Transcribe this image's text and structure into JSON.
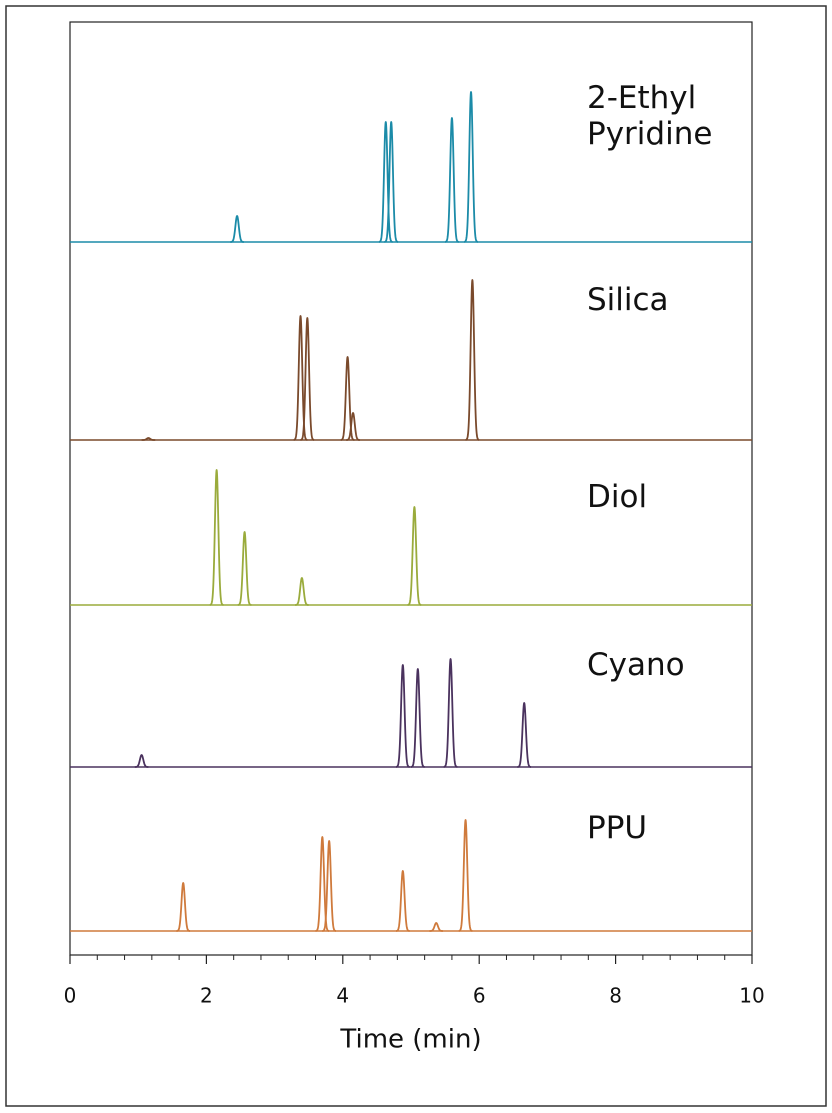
{
  "chart_data": {
    "type": "chromatogram",
    "x_label": "Time (min)",
    "xlim": [
      0,
      10
    ],
    "xticks": [
      0,
      2,
      4,
      6,
      8,
      10
    ],
    "minor_xticks": [
      0.4,
      0.8,
      1.2,
      1.6,
      2.4,
      2.8,
      3.2,
      3.6,
      4.4,
      4.8,
      5.2,
      5.6,
      6.4,
      6.8,
      7.2,
      7.6,
      8.4,
      8.8,
      9.2,
      9.6
    ],
    "series": [
      {
        "name": "2-Ethyl Pyridine",
        "color": "#1b8ba8",
        "x": [
          2.45,
          4.63,
          4.71,
          5.6,
          5.88
        ],
        "values": [
          26,
          120,
          120,
          124,
          150
        ]
      },
      {
        "name": "Silica",
        "color": "#7a4a2c",
        "x": [
          1.15,
          3.38,
          3.48,
          4.07,
          4.15,
          5.9
        ],
        "values": [
          2,
          124,
          122,
          83,
          27,
          160
        ]
      },
      {
        "name": "Diol",
        "color": "#9aab3c",
        "x": [
          2.15,
          2.56,
          3.4,
          5.05
        ],
        "values": [
          135,
          73,
          27,
          98
        ]
      },
      {
        "name": "Cyano",
        "color": "#4a325e",
        "x": [
          1.05,
          4.88,
          5.1,
          5.58,
          6.66
        ],
        "values": [
          12,
          102,
          98,
          108,
          64
        ]
      },
      {
        "name": "PPU",
        "color": "#cf7a3c",
        "x": [
          1.66,
          3.7,
          3.8,
          4.88,
          5.37,
          5.8
        ],
        "values": [
          48,
          94,
          90,
          60,
          8,
          111
        ]
      }
    ]
  }
}
